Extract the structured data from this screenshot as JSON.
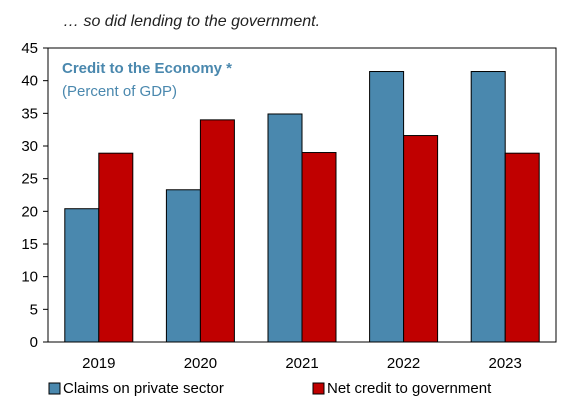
{
  "header": "… so did lending to the government.",
  "chart_data": {
    "type": "bar",
    "title": "Credit to the Economy *",
    "subtitle": "(Percent of GDP)",
    "categories": [
      "2019",
      "2020",
      "2021",
      "2022",
      "2023"
    ],
    "series": [
      {
        "name": "Claims on private sector",
        "color": "#4A88AE",
        "values": [
          20.4,
          23.3,
          34.9,
          41.4,
          41.4
        ]
      },
      {
        "name": "Net credit to government",
        "color": "#C00000",
        "values": [
          28.9,
          34.0,
          29.0,
          31.6,
          28.9
        ]
      }
    ],
    "ylim": [
      0,
      45
    ],
    "yticks": [
      0,
      5,
      10,
      15,
      20,
      25,
      30,
      35,
      40,
      45
    ],
    "grid": false,
    "legend": "bottom"
  }
}
